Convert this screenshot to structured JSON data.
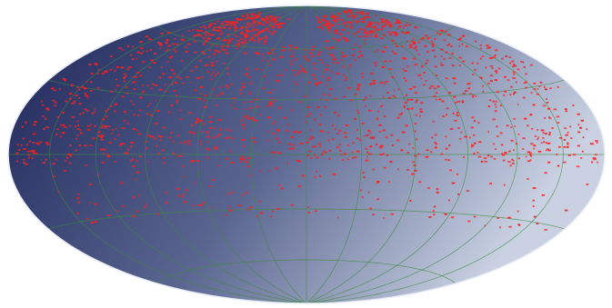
{
  "map": {
    "projection": "aitoff-hammer",
    "colors": {
      "background": "#ffffff",
      "ellipse_dark": "#1c2457",
      "ellipse_mid": "#5a6690",
      "ellipse_light": "#c9d1e2",
      "outline": "#e8ecf5",
      "graticule": "#3c8a3c",
      "points": "#ff1e1e"
    },
    "graticule": {
      "meridian_longitudes_deg": [
        -150,
        -120,
        -90,
        -60,
        -30,
        0,
        30,
        60,
        90,
        120,
        150
      ],
      "parallel_latitudes_deg": [
        -60,
        -30,
        0,
        30,
        60
      ]
    },
    "point_clusters": [
      {
        "name": "north-pole-arc-left",
        "lon": [
          -140,
          -40
        ],
        "lat": [
          62,
          80
        ],
        "count": 220
      },
      {
        "name": "north-pole-arc-right",
        "lon": [
          20,
          150
        ],
        "lat": [
          64,
          82
        ],
        "count": 200
      },
      {
        "name": "high-north-band",
        "lon": [
          -165,
          170
        ],
        "lat": [
          38,
          62
        ],
        "count": 360
      },
      {
        "name": "mid-north-band",
        "lon": [
          -170,
          170
        ],
        "lat": [
          15,
          40
        ],
        "count": 380
      },
      {
        "name": "equatorial-band",
        "lon": [
          -175,
          178
        ],
        "lat": [
          -4,
          14
        ],
        "count": 420
      },
      {
        "name": "south-scatter",
        "lon": [
          -150,
          175
        ],
        "lat": [
          -35,
          -4
        ],
        "count": 150
      }
    ]
  }
}
